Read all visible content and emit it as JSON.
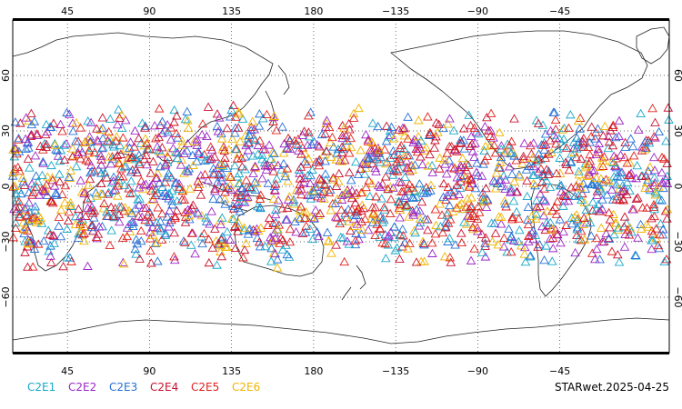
{
  "map": {
    "projection": "plate-carree",
    "central_longitude": 180,
    "lon_range": [
      15,
      375
    ],
    "lat_range": [
      -90,
      90
    ],
    "grid": "dotted",
    "marker_shape": "triangle-outline",
    "coverage_lat_range": [
      -45,
      45
    ],
    "top_ticks": [
      "45",
      "90",
      "135",
      "180",
      "−135",
      "−90",
      "−45"
    ],
    "bottom_ticks": [
      "45",
      "90",
      "135",
      "180",
      "−135",
      "−90",
      "−45"
    ],
    "left_ticks": [
      "60",
      "30",
      "0",
      "−30",
      "−60"
    ],
    "right_ticks": [
      "60",
      "30",
      "0",
      "−30",
      "−60"
    ]
  },
  "legend": {
    "items": [
      {
        "label": "C2E1",
        "color": "#17a8c8"
      },
      {
        "label": "C2E2",
        "color": "#9b27c6"
      },
      {
        "label": "C2E3",
        "color": "#2470d8"
      },
      {
        "label": "C2E4",
        "color": "#c8102e"
      },
      {
        "label": "C2E5",
        "color": "#e0201c"
      },
      {
        "label": "C2E6",
        "color": "#f0b400"
      }
    ]
  },
  "footer": {
    "stamp": "STARwet.2025-04-25"
  }
}
